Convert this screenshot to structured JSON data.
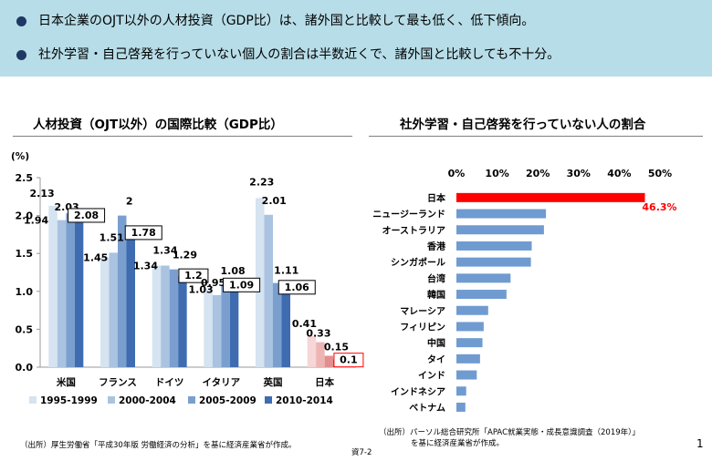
{
  "banner": {
    "bullets": [
      "日本企業のOJT以外の人材投資（GDP比）は、諸外国と比較して最も低く、低下傾向。",
      "社外学習・自己啓発を行っていない個人の割合は半数近くで、諸外国と比較しても不十分。"
    ]
  },
  "left_panel": {
    "title": "人材投資（OJT以外）の国際比較（GDP比）",
    "unit_label": "(%)",
    "source": "（出所）厚生労働省「平成30年版 労働経済の分析」を基に経済産業省が作成。"
  },
  "right_panel": {
    "title": "社外学習・自己啓発を行っていない人の割合",
    "source_line1": "（出所）パーソル総合研究所「APAC就業実態・成長意識調査（2019年）」",
    "source_line2": "を基に経済産業省が作成。"
  },
  "footer": {
    "ref": "資7-2",
    "page": "1"
  },
  "chart_data": [
    {
      "type": "bar",
      "title": "人材投資（OJT以外）の国際比較（GDP比）",
      "ylabel": "(%)",
      "ylim": [
        0,
        2.5
      ],
      "yticks": [
        "0.0",
        "0.5",
        "1.0",
        "1.5",
        "2.0",
        "2.5"
      ],
      "categories": [
        "米国",
        "フランス",
        "ドイツ",
        "イタリア",
        "英国",
        "日本"
      ],
      "series": [
        {
          "name": "1995-1999",
          "values": [
            2.13,
            1.45,
            1.34,
            1.03,
            2.23,
            0.41
          ]
        },
        {
          "name": "2000-2004",
          "values": [
            1.94,
            1.51,
            1.34,
            0.95,
            2.01,
            0.33
          ]
        },
        {
          "name": "2005-2009",
          "values": [
            2.03,
            2,
            1.29,
            1.08,
            1.11,
            0.15
          ]
        },
        {
          "name": "2010-2014",
          "values": [
            2.08,
            1.78,
            1.2,
            1.09,
            1.06,
            0.1
          ]
        }
      ],
      "colors": [
        "#d6e3f0",
        "#a9c3e0",
        "#7a9fcf",
        "#3f6cb0"
      ],
      "japan_colors": [
        "#f6d6d6",
        "#eeb4b4",
        "#e38e8e",
        "#ff0000"
      ],
      "boxed_series_index": 3,
      "legend_position": "bottom",
      "grid": false
    },
    {
      "type": "bar",
      "orientation": "horizontal",
      "title": "社外学習・自己啓発を行っていない人の割合",
      "xlim": [
        0,
        50
      ],
      "xticks": [
        "0%",
        "10%",
        "20%",
        "30%",
        "40%",
        "50%"
      ],
      "categories": [
        "日本",
        "ニュージーランド",
        "オーストラリア",
        "香港",
        "シンガポール",
        "台湾",
        "韓国",
        "マレーシア",
        "フィリピン",
        "中国",
        "タイ",
        "インド",
        "インドネシア",
        "ベトナム"
      ],
      "values": [
        46.3,
        22,
        21.5,
        18.5,
        18.3,
        13.3,
        12.3,
        7.8,
        6.7,
        6.4,
        5.8,
        5,
        2.4,
        2.2
      ],
      "highlight_label": "46.3%",
      "colors": {
        "default": "#6f9bd1",
        "highlight": "#ff0000",
        "highlight_text": "#ff0000"
      },
      "tick_position": "top",
      "grid": false
    }
  ]
}
